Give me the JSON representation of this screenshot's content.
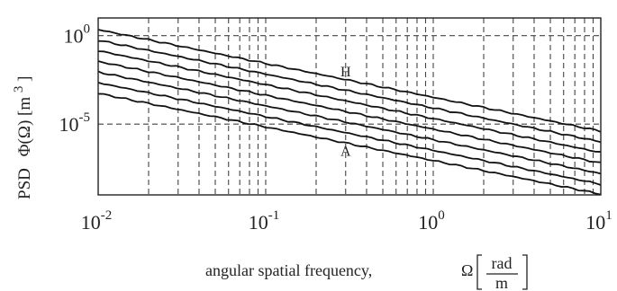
{
  "chart_data": {
    "type": "line",
    "xscale": "log",
    "yscale": "log",
    "xlim": [
      0.01,
      10
    ],
    "ylim": [
      1e-09,
      10
    ],
    "xticks": [
      {
        "value": 0.01,
        "base": "10",
        "exp": "-2"
      },
      {
        "value": 0.1,
        "base": "10",
        "exp": "-1"
      },
      {
        "value": 1,
        "base": "10",
        "exp": "0"
      },
      {
        "value": 10,
        "base": "10",
        "exp": "1"
      }
    ],
    "yticks": [
      {
        "value": 1,
        "base": "10",
        "exp": "0"
      },
      {
        "value": 1e-05,
        "base": "10",
        "exp": "-5"
      }
    ],
    "xlabel": {
      "text": "angular spatial frequency,",
      "symbol": "Ω",
      "unit_numerator": "rad",
      "unit_denominator": "m"
    },
    "ylabel": {
      "prefix": "PSD",
      "expression": "Φ(Ω)",
      "unit": "[m",
      "unit_exp": "3",
      "unit_close": "]"
    },
    "grid": true,
    "annotations": [
      {
        "text": "H",
        "x": 0.3,
        "y": 0.005
      },
      {
        "text": "A",
        "x": 0.3,
        "y": 1.6e-07
      }
    ],
    "series": [
      {
        "x": [
          0.01,
          10
        ],
        "y": [
          2.2,
          4e-06
        ]
      },
      {
        "x": [
          0.01,
          10
        ],
        "y": [
          0.55,
          1e-06
        ]
      },
      {
        "x": [
          0.01,
          10
        ],
        "y": [
          0.14,
          2.5e-07
        ]
      },
      {
        "x": [
          0.01,
          10
        ],
        "y": [
          0.035,
          6.3e-08
        ]
      },
      {
        "x": [
          0.01,
          10
        ],
        "y": [
          0.0088,
          1.6e-08
        ]
      },
      {
        "x": [
          0.01,
          10
        ],
        "y": [
          0.0022,
          4e-09
        ]
      },
      {
        "x": [
          0.01,
          10
        ],
        "y": [
          0.00055,
          1.1e-09
        ]
      }
    ]
  }
}
